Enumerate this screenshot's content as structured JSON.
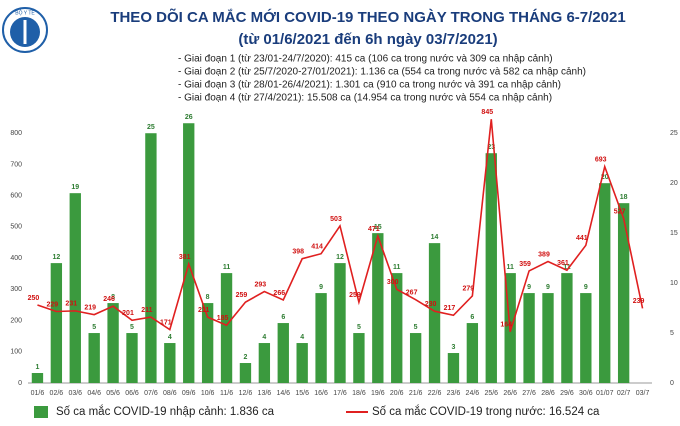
{
  "logo_text": "BỘ Y TẾ",
  "chart_data": {
    "type": "bar",
    "title": "THEO DÕI CA MẮC MỚI COVID-19 THEO NGÀY TRONG THÁNG 6-7/2021",
    "subtitle": "(từ 01/6/2021 đến 6h ngày 03/7/2021)",
    "annotations": [
      "- Giai đoạn 1 (từ 23/01-24/7/2020): 415 ca (106 ca trong nước và 309 ca nhập cảnh)",
      "- Giai đoạn 2 (từ 25/7/2020-27/01/2021): 1.136 ca (554 ca trong nước và 582 ca nhập cảnh)",
      "- Giai đoạn 3 (từ 28/01-26/4/2021): 1.301 ca (910 ca trong nước và 391 ca nhập cảnh)",
      "- Giai đoạn 4 (từ 27/4/2021): 15.508 ca (14.954 ca trong nước và 554 ca nhập cảnh)"
    ],
    "categories": [
      "01/6",
      "02/6",
      "03/6",
      "04/6",
      "05/6",
      "06/6",
      "07/6",
      "08/6",
      "09/6",
      "10/6",
      "11/6",
      "12/6",
      "13/6",
      "14/6",
      "15/6",
      "16/6",
      "17/6",
      "18/6",
      "19/6",
      "20/6",
      "21/6",
      "22/6",
      "23/6",
      "24/6",
      "25/6",
      "26/6",
      "27/6",
      "28/6",
      "29/6",
      "30/6",
      "01/07",
      "02/7",
      "03/7"
    ],
    "series": [
      {
        "name": "Số ca mắc COVID-19 nhập cảnh: 1.836 ca",
        "type": "bar",
        "axis": "y2",
        "color": "#3b9a3e",
        "values": [
          1,
          12,
          19,
          5,
          8,
          5,
          25,
          4,
          26,
          8,
          11,
          2,
          4,
          6,
          4,
          9,
          12,
          5,
          15,
          11,
          5,
          14,
          3,
          6,
          23,
          11,
          9,
          9,
          11,
          9,
          20,
          18,
          null
        ]
      },
      {
        "name": "Số ca mắc COVID-19 trong nước: 16.524 ca",
        "type": "line",
        "color": "#e02020",
        "values": [
          250,
          229,
          231,
          219,
          246,
          201,
          211,
          171,
          381,
          211,
          185,
          259,
          293,
          266,
          398,
          414,
          503,
          259,
          471,
          300,
          267,
          230,
          217,
          279,
          845,
          164,
          359,
          389,
          361,
          441,
          693,
          527,
          239
        ]
      }
    ],
    "ylim": [
      0,
      900
    ],
    "yticks": [
      0,
      100,
      200,
      300,
      400,
      500,
      600,
      700,
      800
    ],
    "y2lim": [
      0,
      28.125
    ],
    "y2ticks": [
      0,
      5,
      10,
      15,
      20,
      25
    ],
    "grid": false
  }
}
